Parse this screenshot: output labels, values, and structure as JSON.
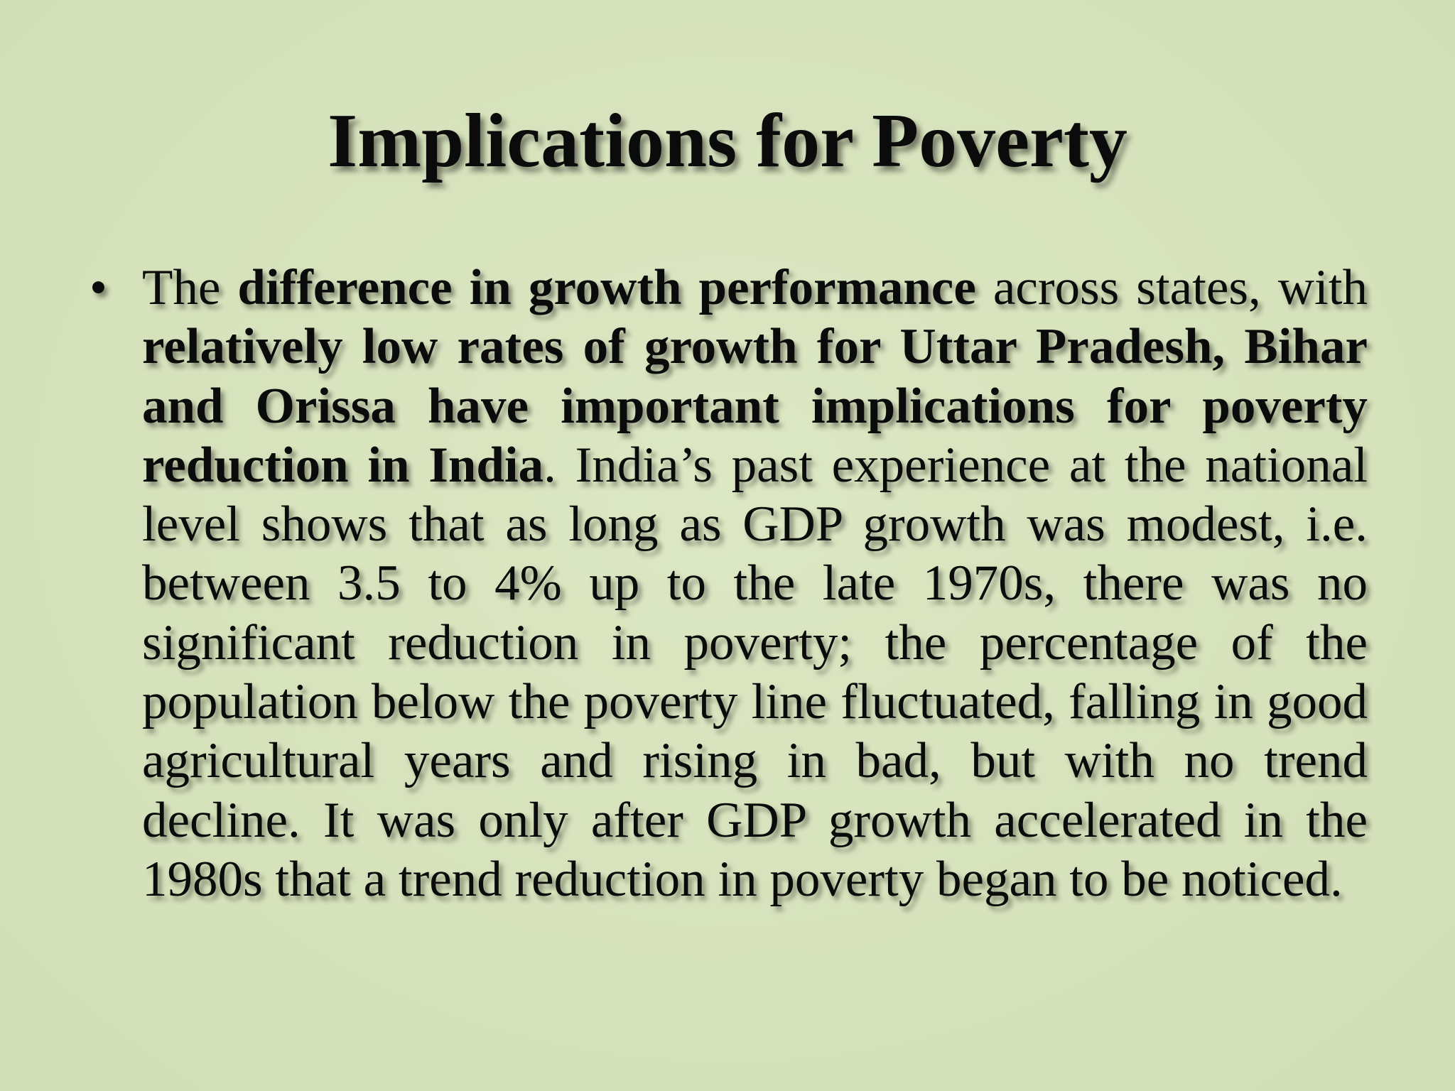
{
  "slide": {
    "title": "Implications for Poverty",
    "bullets": [
      {
        "marker": "•",
        "segments": [
          {
            "text": "The ",
            "bold": false
          },
          {
            "text": "difference in growth performance",
            "bold": true
          },
          {
            "text": " across states, with ",
            "bold": false
          },
          {
            "text": "relatively low rates of growth for Uttar Pradesh, Bihar and Orissa have important implications for poverty reduction in India",
            "bold": true
          },
          {
            "text": ". India’s past experience at the national level shows that as long as GDP growth was modest, i.e. between 3.5 to 4% up to the late 1970s, there was no significant reduction in poverty; the percentage of the population below the poverty line fluctuated, falling in good agricultural years and rising in bad, but with no trend decline. It was only after GDP growth accelerated in the 1980s that a trend reduction in poverty began to be noticed.",
            "bold": false
          }
        ]
      }
    ]
  },
  "colors": {
    "background": "#d8e4bd",
    "text": "#0b0b0b"
  }
}
